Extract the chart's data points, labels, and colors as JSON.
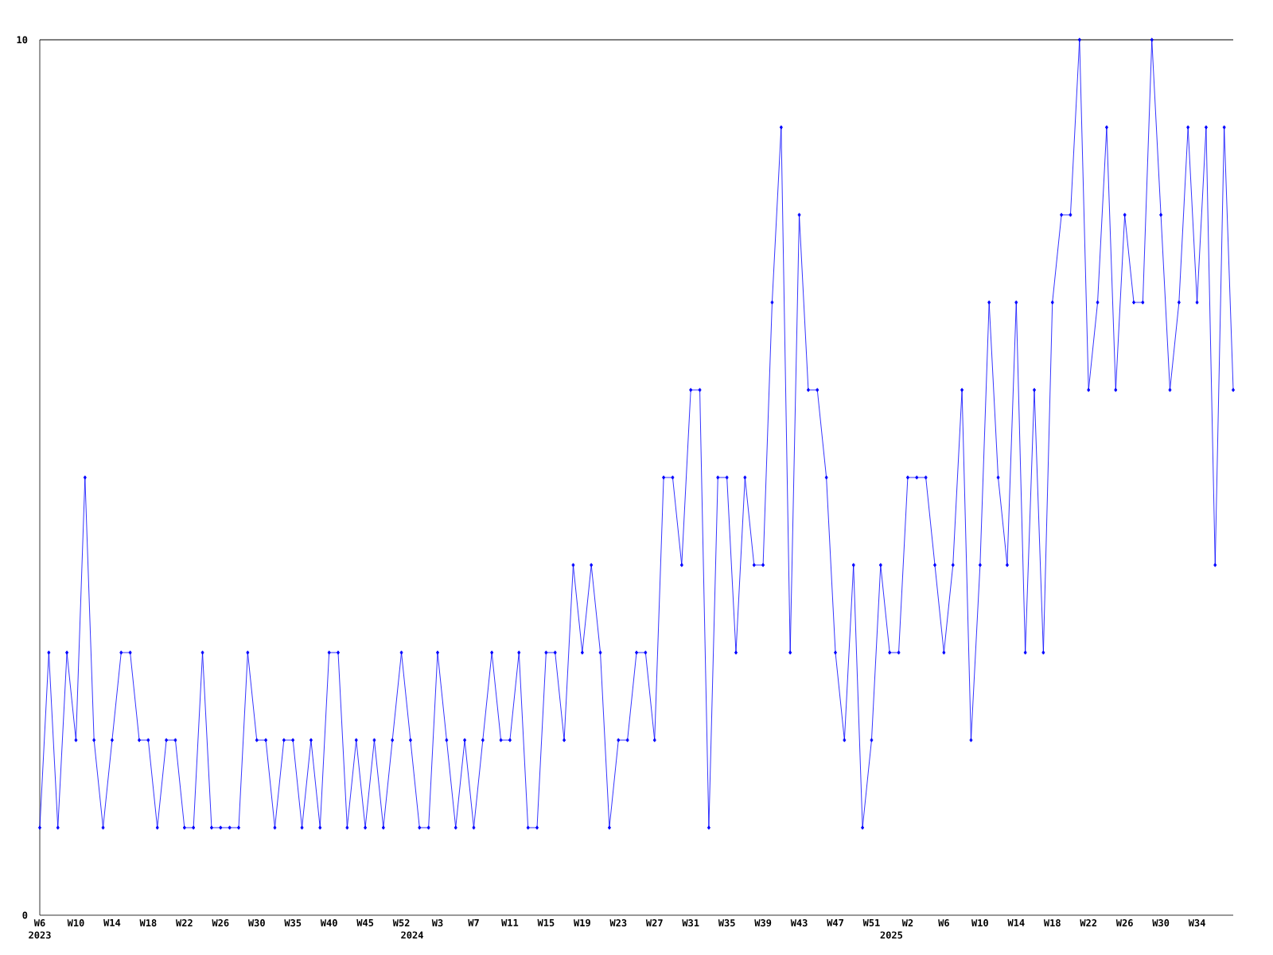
{
  "chart_data": {
    "type": "line",
    "color": "#0000ff",
    "marker": "diamond",
    "line_style": "solid",
    "ylim": [
      0,
      10
    ],
    "yticks": [
      0,
      10
    ],
    "categories": [
      "W6",
      null,
      null,
      null,
      "W10",
      null,
      null,
      null,
      "W14",
      null,
      null,
      null,
      "W18",
      null,
      null,
      null,
      "W22",
      null,
      null,
      null,
      "W26",
      null,
      null,
      null,
      "W30",
      null,
      null,
      null,
      "W35",
      null,
      null,
      null,
      "W40",
      null,
      null,
      null,
      "W45",
      null,
      null,
      null,
      "W52",
      null,
      null,
      null,
      "W3",
      null,
      null,
      null,
      "W7",
      null,
      null,
      null,
      "W11",
      null,
      null,
      null,
      "W15",
      null,
      null,
      null,
      "W19",
      null,
      null,
      null,
      "W23",
      null,
      null,
      null,
      "W27",
      null,
      null,
      null,
      "W31",
      null,
      null,
      null,
      "W35",
      null,
      null,
      null,
      "W39",
      null,
      null,
      null,
      "W43",
      null,
      null,
      null,
      "W47",
      null,
      null,
      null,
      "W51",
      null,
      null,
      null,
      "W2",
      null,
      null,
      null,
      "W6",
      null,
      null,
      null,
      "W10",
      null,
      null,
      null,
      "W14",
      null,
      null,
      null,
      "W18",
      null,
      null,
      null,
      "W22",
      null,
      null,
      null,
      "W26",
      null,
      null,
      null,
      "W30",
      null,
      null,
      null,
      "W34",
      null,
      null,
      null,
      null
    ],
    "values": [
      1,
      3,
      1,
      3,
      2,
      5,
      2,
      1,
      2,
      3,
      3,
      2,
      2,
      1,
      2,
      2,
      1,
      1,
      3,
      1,
      1,
      1,
      1,
      3,
      2,
      2,
      1,
      2,
      2,
      1,
      2,
      1,
      3,
      3,
      1,
      2,
      1,
      2,
      1,
      2,
      3,
      2,
      1,
      1,
      3,
      2,
      1,
      2,
      1,
      2,
      3,
      2,
      2,
      3,
      1,
      1,
      3,
      3,
      2,
      4,
      3,
      4,
      3,
      1,
      2,
      2,
      3,
      3,
      2,
      5,
      5,
      4,
      6,
      6,
      1,
      5,
      5,
      3,
      5,
      4,
      4,
      7,
      9,
      3,
      8,
      6,
      6,
      5,
      3,
      2,
      4,
      1,
      2,
      4,
      3,
      3,
      5,
      5,
      5,
      4,
      3,
      4,
      6,
      2,
      4,
      7,
      5,
      4,
      7,
      3,
      6,
      3,
      7,
      8,
      8,
      10,
      6,
      7,
      9,
      6,
      8,
      7,
      7,
      10,
      8,
      6,
      7,
      9,
      7,
      9,
      4,
      9,
      6
    ],
    "annotations": [
      "2023",
      "2024",
      "2025"
    ]
  }
}
